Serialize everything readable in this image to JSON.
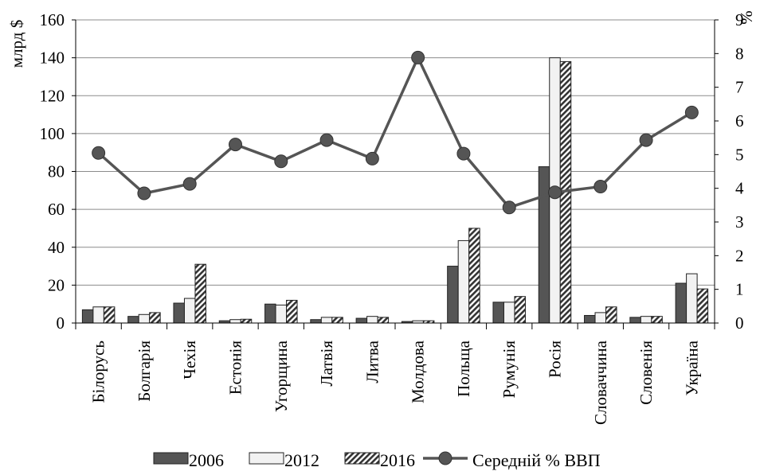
{
  "chart_data": {
    "type": "bar",
    "categories": [
      "Білорусь",
      "Болгарія",
      "Чехія",
      "Естонія",
      "Угорщина",
      "Латвія",
      "Литва",
      "Молдова",
      "Польща",
      "Румунія",
      "Росія",
      "Словаччина",
      "Словенія",
      "Україна"
    ],
    "series": [
      {
        "name": "2006",
        "type": "bar",
        "axis": "left",
        "color": "#555555",
        "pattern": "solid",
        "values": [
          7,
          3.5,
          10.5,
          1.2,
          10,
          1.8,
          2.5,
          0.8,
          30,
          11,
          82.5,
          4,
          3,
          21
        ]
      },
      {
        "name": "2012",
        "type": "bar",
        "axis": "left",
        "color": "#f2f2f2",
        "pattern": "solid",
        "values": [
          8.5,
          4.5,
          13,
          1.8,
          9.5,
          3,
          3.5,
          1.2,
          43.5,
          11,
          140,
          5.5,
          3.5,
          26
        ]
      },
      {
        "name": "2016",
        "type": "bar",
        "axis": "left",
        "color": "#777777",
        "pattern": "hatch",
        "values": [
          8.5,
          5.5,
          31,
          2,
          12,
          3,
          3,
          1.2,
          50,
          14,
          138,
          8.5,
          3.5,
          18
        ]
      },
      {
        "name": "Середній % ВВП",
        "type": "line",
        "axis": "right",
        "color": "#555555",
        "marker": "circle",
        "values": [
          5.05,
          3.85,
          4.13,
          5.3,
          4.8,
          5.43,
          4.88,
          7.88,
          5.03,
          3.43,
          3.88,
          4.05,
          5.43,
          6.25
        ]
      }
    ],
    "ylabel": "млрд $",
    "ylim": [
      0,
      160
    ],
    "yticks": [
      0,
      20,
      40,
      60,
      80,
      100,
      120,
      140,
      160
    ],
    "y2label": "%",
    "y2lim": [
      0,
      9
    ],
    "y2ticks": [
      0,
      1,
      2,
      3,
      4,
      5,
      6,
      7,
      8,
      9
    ],
    "grid": true,
    "legend_position": "bottom"
  }
}
